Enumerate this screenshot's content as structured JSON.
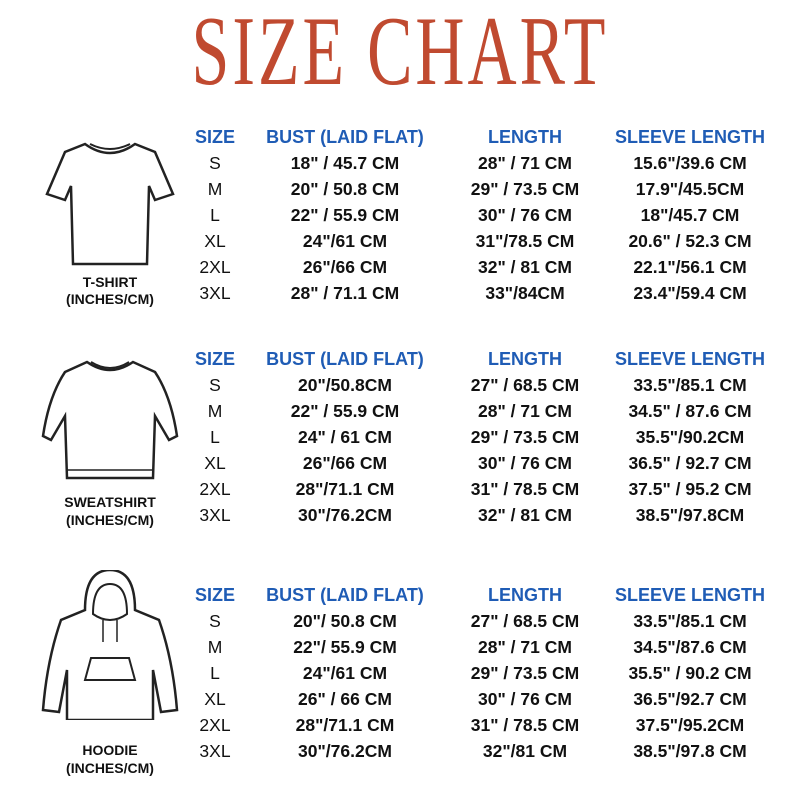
{
  "title": "SIZE CHART",
  "colors": {
    "title": "#c04a30",
    "header": "#1f5cb5",
    "text": "#111111"
  },
  "headers": [
    "SIZE",
    "BUST (LAID FLAT)",
    "LENGTH",
    "SLEEVE LENGTH"
  ],
  "sections": [
    {
      "garment": "T-SHIRT",
      "unit": "(INCHES/CM)",
      "icon": "tshirt-icon",
      "rows": [
        [
          "S",
          "18\" / 45.7 CM",
          "28\" / 71 CM",
          "15.6\"/39.6 CM"
        ],
        [
          "M",
          "20\" / 50.8 CM",
          "29\" / 73.5 CM",
          "17.9\"/45.5CM"
        ],
        [
          "L",
          "22\" / 55.9 CM",
          "30\" / 76 CM",
          "18\"/45.7 CM"
        ],
        [
          "XL",
          "24\"/61 CM",
          "31\"/78.5 CM",
          "20.6\" / 52.3 CM"
        ],
        [
          "2XL",
          "26\"/66 CM",
          "32\" / 81 CM",
          "22.1\"/56.1 CM"
        ],
        [
          "3XL",
          "28\" / 71.1 CM",
          "33\"/84CM",
          "23.4\"/59.4 CM"
        ]
      ]
    },
    {
      "garment": "SWEATSHIRT",
      "unit": "(INCHES/CM)",
      "icon": "sweatshirt-icon",
      "rows": [
        [
          "S",
          "20\"/50.8CM",
          "27\" / 68.5 CM",
          "33.5\"/85.1 CM"
        ],
        [
          "M",
          "22\" / 55.9 CM",
          "28\" / 71 CM",
          "34.5\" / 87.6 CM"
        ],
        [
          "L",
          "24\" / 61 CM",
          "29\" / 73.5 CM",
          "35.5\"/90.2CM"
        ],
        [
          "XL",
          "26\"/66 CM",
          "30\" / 76 CM",
          "36.5\" / 92.7 CM"
        ],
        [
          "2XL",
          "28\"/71.1 CM",
          "31\" / 78.5 CM",
          "37.5\" / 95.2 CM"
        ],
        [
          "3XL",
          "30\"/76.2CM",
          "32\" / 81 CM",
          "38.5\"/97.8CM"
        ]
      ]
    },
    {
      "garment": "HOODIE",
      "unit": "(INCHES/CM)",
      "icon": "hoodie-icon",
      "rows": [
        [
          "S",
          "20\"/ 50.8 CM",
          "27\" / 68.5 CM",
          "33.5\"/85.1 CM"
        ],
        [
          "M",
          "22\"/ 55.9 CM",
          "28\" / 71 CM",
          "34.5\"/87.6 CM"
        ],
        [
          "L",
          "24\"/61 CM",
          "29\" / 73.5 CM",
          "35.5\" / 90.2 CM"
        ],
        [
          "XL",
          "26\" / 66 CM",
          "30\" / 76 CM",
          "36.5\"/92.7 CM"
        ],
        [
          "2XL",
          "28\"/71.1 CM",
          "31\" / 78.5 CM",
          "37.5\"/95.2CM"
        ],
        [
          "3XL",
          "30\"/76.2CM",
          "32\"/81 CM",
          "38.5\"/97.8 CM"
        ]
      ]
    }
  ]
}
